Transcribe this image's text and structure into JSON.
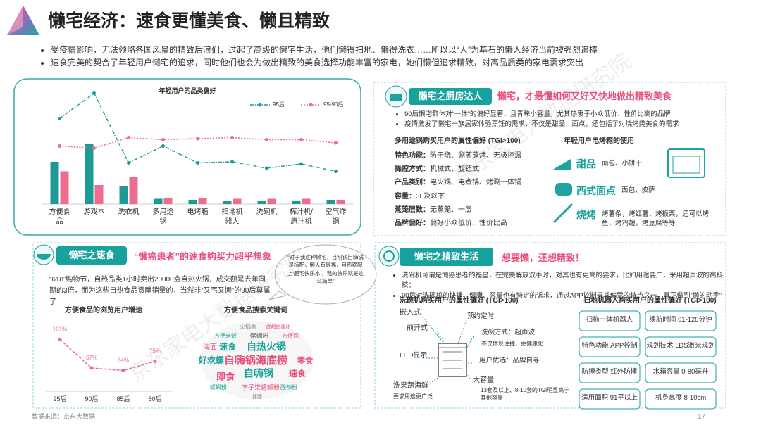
{
  "header": {
    "title": "懒宅经济：速食更懂美食、懒且精致",
    "bullets": [
      "受疫情影响，无法领略各国风景的精致后浪们，过起了高级的懒宅生活，他们懒得扫地、懒得洗衣……所以以“人”为基石的懒人经济当前被强烈追捧",
      "速食完美的契合了年轻用户懒宅的追求，同时他们也会为做出精致的美食选择功能丰富的家电，她们懒但追求精致，对高品质类的家电需求突出"
    ]
  },
  "watermark": "京东家电大数据研究院",
  "kitchen": {
    "tag": "懒宅之厨房达人",
    "headline": "懒宅，才最懂如何又好又快地做出精致美食",
    "bullets": [
      "90后懒宅群体对“一体”的偏好显著，且青睐小容量，尤其热衷于小众低价、性价比高的品牌",
      "疫情激发了懒宅一族居家体验烹饪的需求，不仅是甜品、面点，还包括了对烧烤类美食的需求"
    ],
    "pot": {
      "title": "多用途锅购买用户的属性偏好 (TGI>100)",
      "rows": [
        {
          "label": "特色功能：",
          "value": "防干烧、涮煎蒸烤、无极控温"
        },
        {
          "label": "操控方式：",
          "value": "机械式、旋钮式"
        },
        {
          "label": "产品类别：",
          "value": "电火锅、电煮锅、烤涮一体锅"
        },
        {
          "label": "容量：",
          "value": "3L及以下"
        },
        {
          "label": "蒸笼层数：",
          "value": "无蒸笼、一层"
        },
        {
          "label": "品牌偏好：",
          "value": "偏好小众低价、性价比高"
        }
      ]
    },
    "oven": {
      "title": "年轻用户电烤箱的使用",
      "items": [
        {
          "label": "甜品",
          "text": "面包、小饼干"
        },
        {
          "label": "西式面点",
          "text": "面包，披萨"
        },
        {
          "label": "烧烤",
          "text": "烤薯条，烤红薯，烤板栗，还可以烤鱼，烤鸡翅，烤豆腐等等"
        }
      ]
    }
  },
  "instant": {
    "tag": "懒宅之速食",
    "headline": "“懒癌患者”的速食购买力超乎想象",
    "text": "“618”购物节，自热品类1小时卖出20000盒自热火锅，成交额是去年同期的3倍，而为这些自热食品贡献销量的，当然非“又宅又懒”的90后莫属了",
    "quote": "“对于我这种懒宅，自热锅自嗨锅是标配，懒人有懒福，自热锅配上‘肥宅快乐水’，我的快乐就是这么简单”",
    "keywords_title": "方便食品搜索关键词",
    "keywords": [
      "火锅面",
      "成都肉酱粉",
      "方便米饭",
      "螺蛳粉",
      "方便面",
      "速食",
      "自热火锅",
      "海面",
      "自嗨锅海底捞",
      "零食",
      "好欢螺",
      "自嗨锅",
      "即食",
      "速食",
      "李子柒螺蛳粉",
      "螺蛳粉",
      "酸辣粉",
      "拌面"
    ]
  },
  "refined": {
    "tag": "懒宅之精致生活",
    "headline": "想要懒，还想精致！",
    "bullets": [
      "洗碗机可谓是懒癌患者的福星，在完美解放双手时，对其也有更高的要求，比如用途要广，采用超声波的高科技；",
      "90后对洗碗机的快捷、健康、容量也有特定的诉求，通过APP控制是其偏爱的特点之一，真正做到“懒的动手”"
    ],
    "dishwasher": {
      "title": "洗碗机购买用户的属性偏好 (TGI>100)",
      "labels": [
        "嵌入式",
        "预约定时",
        "前开式",
        "洗碗方式：超声波",
        "不仅体现便捷，更健康化",
        "LED显示",
        "用户优选：品牌自寻",
        "大容量",
        "13套及以上、8-10套的TGI明显高于其他容量",
        "洗果蔬海鲜",
        "要求用途更广泛"
      ]
    },
    "robot": {
      "title": "扫地机器人购买用户的属性偏好 (TGI>100)",
      "items": [
        "扫拖一体机器人",
        "续航时间 61-120分钟",
        "特色功能 APP控制",
        "规划技术 LDS激光规划",
        "防撞类型 红外防撞",
        "水箱容量 0-80毫升",
        "适用面积 91平以上",
        "机身高度 8-10cm"
      ]
    }
  },
  "chart_data": [
    {
      "type": "bar",
      "title": "年轻用户的品类偏好",
      "categories": [
        "方便食品",
        "游戏本",
        "洗衣机",
        "多用途锅",
        "电烤箱",
        "扫地机器人",
        "洗碗机",
        "榨汁机/原汁机",
        "空气炸锅"
      ],
      "series": [
        {
          "name": "95后",
          "color": "#1e9a96",
          "values": [
            40,
            57,
            17,
            5,
            4,
            3,
            3,
            3,
            4
          ],
          "line_values": [
            81,
            105,
            39,
            55,
            39,
            40,
            34,
            38,
            31
          ]
        },
        {
          "name": "95-90后",
          "color": "#ec6d8e",
          "values": [
            31,
            18,
            26,
            6,
            6,
            5,
            5,
            5,
            4
          ],
          "line_values": [
            55,
            53,
            63,
            61,
            62,
            63,
            61,
            61,
            58
          ]
        }
      ],
      "ylim": [
        0,
        110
      ],
      "legend": "top-right"
    },
    {
      "type": "line",
      "title": "方便食品的浏览用户增速",
      "categories": [
        "95后",
        "90后",
        "85后",
        "80后"
      ],
      "values": [
        101,
        67,
        64,
        75
      ],
      "value_labels": [
        "101%",
        "67%",
        "64%",
        "75%"
      ],
      "color": "#ec6d8e",
      "ylim": [
        40,
        110
      ]
    }
  ],
  "footer": {
    "source": "数据来源：京东大数据",
    "page": "17"
  }
}
